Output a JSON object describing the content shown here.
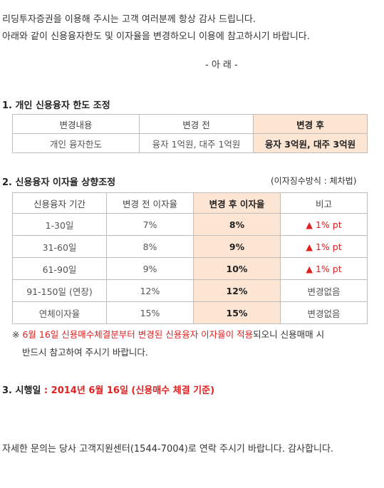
{
  "intro": {
    "line1": "리딩투자증권을 이용해 주시는 고객 여러분께 항상 감사 드립니다.",
    "line2": "아래와 같이 신용융자한도 및 이자율을 변경하오니 이용에 참고하시기 바랍니다.",
    "line3": "- 아        래 -"
  },
  "section1": {
    "title": "1. 개인 신용융자 한도 조정",
    "headers": [
      "변경내용",
      "변경 전",
      "변경 후"
    ],
    "row": [
      "개인 융자한도",
      "융자 1억원, 대주 1억원",
      "융자 3억원, 대주 3억원"
    ]
  },
  "section2": {
    "title": "2. 신용융자 이자율 상향조정",
    "method": "(이자징수방식 : 체차법)",
    "headers": [
      "신용융자 기간",
      "변경 전 이자율",
      "변경 후 이자율",
      "비고"
    ],
    "rows": [
      {
        "period": "1-30일",
        "before": "7%",
        "after": "8%",
        "note": "▲ 1% pt"
      },
      {
        "period": "31-60일",
        "before": "8%",
        "after": "9%",
        "note": "▲ 1% pt"
      },
      {
        "period": "61-90일",
        "before": "9%",
        "after": "10%",
        "note": "▲ 1% pt"
      },
      {
        "period": "91-150일 (연장)",
        "before": "12%",
        "after": "12%",
        "note": "변경없음"
      },
      {
        "period": "연체이자율",
        "before": "15%",
        "after": "15%",
        "note": "변경없음"
      }
    ],
    "note_prefix": "※ ",
    "note_red": "6월 16일 신용매수체결분부터 변경된 신용융자 이자율이 적용",
    "note_rest": "되오니 신용매매 시",
    "note_line2": "반드시 참고하여 주시기 바랍니다."
  },
  "section3": {
    "title_prefix": "3. 시행일",
    "title_colon": " : ",
    "date": "2014년 6월 16일 (신용매수 체결 기준)"
  },
  "footer": "자세한 문의는 당사 고객지원센터(1544-7004)로 연락 주시기 바랍니다. 감사합니다.",
  "colors": {
    "accent_red": "#e02020",
    "highlight": "#fde5d4",
    "border": "#bdbdbd"
  }
}
